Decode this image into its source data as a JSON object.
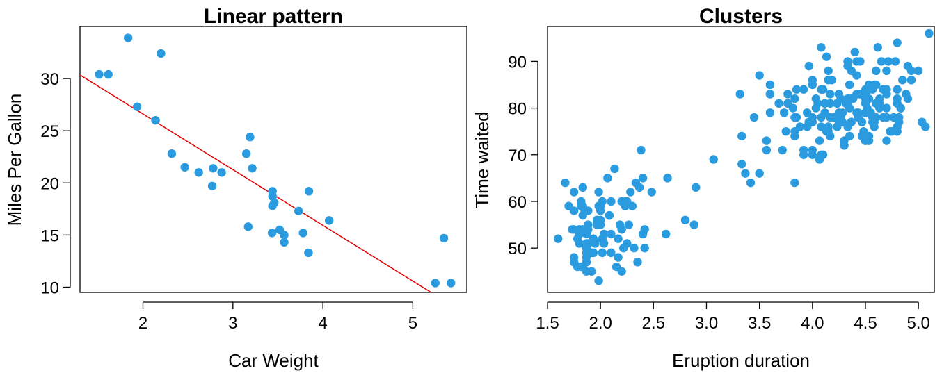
{
  "chart_data": [
    {
      "type": "scatter",
      "title": "Linear pattern",
      "xlabel": "Car Weight",
      "ylabel": "Miles Per Gallon",
      "xlim": [
        1.3,
        5.6
      ],
      "ylim": [
        9.5,
        35.0
      ],
      "xticks": [
        2,
        3,
        4,
        5
      ],
      "yticks": [
        10,
        15,
        20,
        25,
        30
      ],
      "xtick_labels": [
        "2",
        "3",
        "4",
        "5"
      ],
      "ytick_labels": [
        "10",
        "15",
        "20",
        "25",
        "30"
      ],
      "point_color": "#2b9be0",
      "grid": false,
      "trend_line": {
        "color": "#dd0000",
        "intercept": 37.29,
        "slope": -5.34
      },
      "x": [
        2.62,
        2.875,
        2.32,
        3.215,
        3.44,
        3.46,
        3.57,
        3.19,
        3.15,
        3.44,
        3.44,
        4.07,
        3.73,
        3.78,
        5.25,
        5.424,
        5.345,
        2.2,
        1.615,
        1.835,
        2.465,
        3.52,
        3.435,
        3.84,
        3.845,
        1.935,
        2.14,
        1.513,
        3.17,
        2.77,
        3.57,
        2.78
      ],
      "y": [
        21.0,
        21.0,
        22.8,
        21.4,
        18.7,
        18.1,
        14.3,
        24.4,
        22.8,
        19.2,
        17.8,
        16.4,
        17.3,
        15.2,
        10.4,
        10.4,
        14.7,
        32.4,
        30.4,
        33.9,
        21.5,
        15.5,
        15.2,
        13.3,
        19.2,
        27.3,
        26.0,
        30.4,
        15.8,
        19.7,
        15.0,
        21.4
      ]
    },
    {
      "type": "scatter",
      "title": "Clusters",
      "xlabel": "Eruption duration",
      "ylabel": "Time waited",
      "xlim": [
        1.5,
        5.15
      ],
      "ylim": [
        40.5,
        97.5
      ],
      "xticks": [
        1.5,
        2.0,
        2.5,
        3.0,
        3.5,
        4.0,
        4.5,
        5.0
      ],
      "yticks": [
        50,
        60,
        70,
        80,
        90
      ],
      "xtick_labels": [
        "1.5",
        "2.0",
        "2.5",
        "3.0",
        "3.5",
        "4.0",
        "4.5",
        "5.0"
      ],
      "ytick_labels": [
        "50",
        "60",
        "70",
        "80",
        "90"
      ],
      "point_color": "#2b9be0",
      "grid": false,
      "x": [
        3.6,
        1.8,
        3.333,
        2.283,
        4.533,
        2.883,
        4.7,
        3.6,
        1.95,
        4.35,
        1.833,
        3.917,
        4.2,
        1.75,
        4.7,
        2.167,
        1.75,
        4.8,
        1.6,
        4.25,
        1.8,
        1.75,
        3.45,
        3.067,
        4.533,
        3.6,
        1.967,
        4.083,
        3.85,
        4.433,
        4.3,
        4.467,
        3.367,
        4.033,
        3.833,
        2.017,
        1.867,
        4.833,
        1.833,
        4.783,
        4.35,
        1.883,
        4.567,
        1.75,
        4.533,
        3.317,
        3.833,
        2.1,
        4.633,
        2.0,
        4.8,
        4.716,
        1.833,
        4.833,
        1.733,
        4.883,
        3.717,
        1.667,
        4.567,
        4.317,
        2.233,
        4.5,
        1.75,
        4.8,
        1.817,
        4.4,
        4.167,
        4.7,
        2.067,
        4.7,
        4.033,
        1.967,
        4.5,
        4.0,
        1.983,
        5.067,
        2.017,
        4.567,
        3.883,
        3.6,
        4.133,
        4.333,
        4.1,
        2.633,
        4.067,
        4.933,
        3.95,
        4.517,
        2.167,
        4.0,
        2.2,
        4.333,
        1.867,
        4.817,
        1.833,
        4.3,
        4.667,
        3.75,
        1.867,
        4.9,
        2.483,
        4.367,
        2.1,
        4.5,
        4.05,
        1.867,
        4.7,
        1.783,
        4.85,
        3.683,
        4.733,
        2.3,
        4.9,
        4.417,
        1.7,
        4.633,
        2.317,
        4.6,
        1.817,
        4.417,
        2.617,
        4.067,
        4.25,
        1.967,
        4.6,
        3.767,
        1.917,
        4.5,
        2.267,
        4.65,
        1.867,
        4.167,
        2.8,
        4.333,
        1.833,
        4.383,
        1.883,
        4.933,
        2.033,
        3.733,
        4.233,
        2.233,
        4.533,
        4.817,
        4.333,
        1.983,
        4.633,
        2.017,
        5.1,
        1.8,
        5.033,
        4.0,
        2.4,
        4.6,
        3.567,
        4.0,
        4.5,
        4.083,
        1.8,
        3.967,
        2.2,
        4.15,
        2.0,
        3.833,
        3.5,
        4.583,
        2.367,
        5.0,
        1.933,
        4.617,
        1.917,
        2.083,
        4.583,
        3.333,
        4.167,
        4.333,
        4.5,
        2.417,
        4.0,
        4.167,
        1.883,
        4.583,
        4.25,
        3.767,
        2.033,
        4.433,
        4.083,
        1.833,
        4.417,
        2.183,
        4.8,
        1.833,
        4.8,
        4.1,
        3.966,
        4.233,
        3.5,
        4.366,
        2.25,
        4.667,
        2.1,
        4.35,
        4.133,
        1.867,
        4.6,
        1.783,
        4.367,
        3.85,
        1.933,
        4.5,
        2.383,
        4.7,
        1.867,
        3.833,
        3.417,
        4.233,
        2.4,
        4.8,
        2.0,
        4.15,
        1.867,
        4.267,
        1.75,
        4.483,
        4.0,
        4.117,
        4.083,
        4.267,
        3.917,
        4.55,
        4.083,
        2.417,
        4.183,
        2.217,
        4.45,
        1.883,
        1.85,
        4.283,
        3.95,
        2.333,
        4.15,
        2.35,
        4.933,
        2.9,
        4.583,
        3.833,
        2.083,
        4.367,
        2.133,
        4.35,
        2.2,
        4.45,
        3.567,
        4.5,
        4.15,
        3.817,
        3.917,
        4.45,
        2.0,
        4.283,
        4.767,
        4.533,
        1.85,
        4.25,
        1.983,
        2.25,
        4.75,
        4.117,
        2.15,
        4.417,
        1.817,
        4.467
      ],
      "y": [
        79,
        54,
        74,
        62,
        85,
        55,
        88,
        85,
        51,
        85,
        54,
        84,
        78,
        47,
        83,
        52,
        62,
        84,
        52,
        79,
        51,
        47,
        78,
        69,
        74,
        83,
        55,
        76,
        78,
        79,
        73,
        77,
        66,
        80,
        74,
        52,
        48,
        80,
        59,
        90,
        80,
        58,
        84,
        58,
        73,
        83,
        64,
        53,
        82,
        59,
        75,
        90,
        54,
        80,
        54,
        83,
        71,
        64,
        77,
        81,
        59,
        84,
        48,
        82,
        60,
        92,
        78,
        78,
        65,
        73,
        82,
        56,
        79,
        71,
        62,
        76,
        60,
        78,
        76,
        83,
        75,
        82,
        70,
        65,
        73,
        88,
        76,
        80,
        48,
        86,
        60,
        90,
        50,
        78,
        63,
        72,
        84,
        75,
        51,
        82,
        62,
        88,
        49,
        83,
        81,
        47,
        84,
        52,
        86,
        81,
        75,
        59,
        89,
        79,
        59,
        81,
        50,
        85,
        59,
        87,
        53,
        69,
        77,
        56,
        88,
        81,
        45,
        82,
        55,
        90,
        45,
        83,
        56,
        89,
        46,
        82,
        51,
        86,
        53,
        79,
        81,
        60,
        82,
        77,
        76,
        59,
        80,
        49,
        96,
        53,
        77,
        77,
        65,
        81,
        71,
        70,
        81,
        93,
        53,
        89,
        45,
        86,
        58,
        78,
        66,
        76,
        63,
        88,
        52,
        93,
        49,
        57,
        77,
        68,
        81,
        81,
        73,
        50,
        85,
        74,
        55,
        77,
        83,
        83,
        51,
        78,
        84,
        46,
        83,
        55,
        81,
        57,
        76,
        84,
        77,
        81,
        87,
        77,
        51,
        78,
        60,
        82,
        91,
        53,
        78,
        46,
        77,
        84,
        49,
        83,
        71,
        80,
        49,
        75,
        64,
        76,
        53,
        94,
        55,
        76,
        50,
        82,
        54,
        75,
        78,
        79,
        78,
        78,
        70,
        79,
        70,
        54,
        86,
        50,
        90,
        54,
        54,
        77,
        79,
        64,
        75,
        47,
        86,
        63,
        85,
        82,
        57,
        82,
        67,
        74,
        54,
        83,
        73,
        73,
        88,
        80,
        71,
        83,
        56,
        79,
        78,
        84,
        58,
        83,
        43,
        60,
        75,
        81,
        46,
        90,
        46,
        74
      ]
    }
  ]
}
